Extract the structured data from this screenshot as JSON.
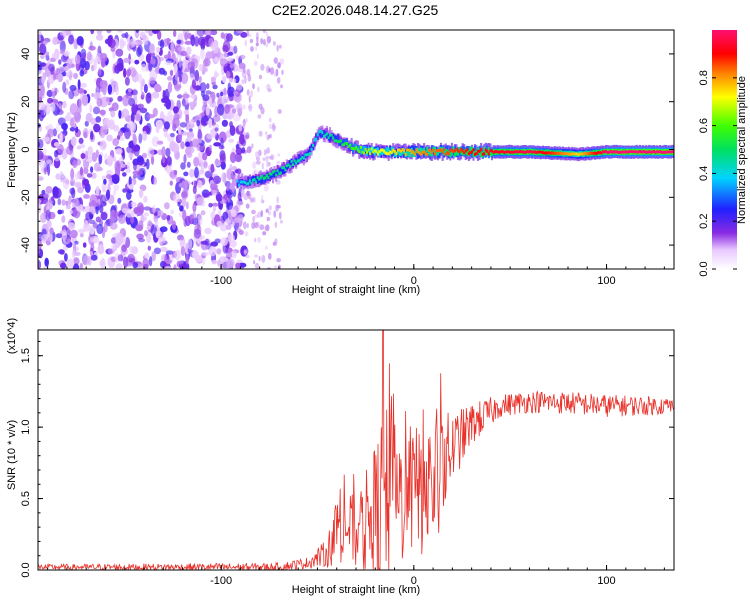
{
  "figure": {
    "title": "C2E2.2026.048.14.27.G25"
  },
  "chart_data": [
    {
      "type": "heatmap",
      "title": "C2E2.2026.048.14.27.G25",
      "xlabel": "Height of straight line (km)",
      "ylabel": "Frequency (Hz)",
      "xlim": [
        -195,
        135
      ],
      "ylim": [
        -50,
        50
      ],
      "xticks": [
        -100,
        0,
        100
      ],
      "yticks": [
        -40,
        -20,
        0,
        20,
        40
      ],
      "xtick_labels": [
        "-100",
        "0",
        "100"
      ],
      "ytick_labels": [
        "-40",
        "-20",
        "0",
        "20",
        "40"
      ],
      "colorbar": {
        "label": "Normalized spectral amplitude",
        "range": [
          0,
          1
        ],
        "ticks": [
          0.0,
          0.2,
          0.4,
          0.6,
          0.8
        ],
        "tick_labels": [
          "0.0",
          "0.2",
          "0.4",
          "0.6",
          "0.8"
        ]
      },
      "noise_region": {
        "x_start": -195,
        "x_end": -88,
        "sparse_to": -68,
        "amplitude": 0.12
      },
      "signal_track": [
        {
          "x": -92,
          "freq": -14,
          "amp": 0.32
        },
        {
          "x": -85,
          "freq": -13,
          "amp": 0.38
        },
        {
          "x": -78,
          "freq": -12,
          "amp": 0.45
        },
        {
          "x": -70,
          "freq": -9,
          "amp": 0.42
        },
        {
          "x": -62,
          "freq": -5,
          "amp": 0.4
        },
        {
          "x": -55,
          "freq": -2,
          "amp": 0.38
        },
        {
          "x": -50,
          "freq": 7,
          "amp": 0.35
        },
        {
          "x": -45,
          "freq": 6,
          "amp": 0.4
        },
        {
          "x": -40,
          "freq": 4,
          "amp": 0.45
        },
        {
          "x": -35,
          "freq": 2,
          "amp": 0.5
        },
        {
          "x": -30,
          "freq": 0,
          "amp": 0.55
        },
        {
          "x": -20,
          "freq": -1,
          "amp": 0.65
        },
        {
          "x": -10,
          "freq": -1,
          "amp": 0.7
        },
        {
          "x": 0,
          "freq": -1,
          "amp": 0.75
        },
        {
          "x": 10,
          "freq": -1,
          "amp": 0.78
        },
        {
          "x": 30,
          "freq": -1,
          "amp": 0.85
        },
        {
          "x": 60,
          "freq": -1,
          "amp": 0.92
        },
        {
          "x": 85,
          "freq": -2,
          "amp": 0.7
        },
        {
          "x": 100,
          "freq": -1,
          "amp": 0.95
        },
        {
          "x": 135,
          "freq": -1,
          "amp": 0.98
        }
      ]
    },
    {
      "type": "line",
      "xlabel": "Height of straight line (km)",
      "ylabel": "SNR (10 * v/v)",
      "y_multiplier": "(x10^4)",
      "xlim": [
        -195,
        135
      ],
      "ylim": [
        0,
        1.68
      ],
      "xticks": [
        -100,
        0,
        100
      ],
      "yticks": [
        0.0,
        0.5,
        1.0,
        1.5
      ],
      "xtick_labels": [
        "-100",
        "0",
        "100"
      ],
      "ytick_labels": [
        "0.0",
        "0.5",
        "1.0",
        "1.5"
      ],
      "series": [
        {
          "name": "SNR",
          "color": "#e8312a",
          "envelope": [
            {
              "x": -195,
              "base": 0.02,
              "spread": 0.02
            },
            {
              "x": -70,
              "base": 0.02,
              "spread": 0.03
            },
            {
              "x": -55,
              "base": 0.05,
              "spread": 0.04
            },
            {
              "x": -45,
              "base": 0.12,
              "spread": 0.1
            },
            {
              "x": -38,
              "base": 0.35,
              "spread": 0.3
            },
            {
              "x": -30,
              "base": 0.25,
              "spread": 0.25
            },
            {
              "x": -22,
              "base": 0.35,
              "spread": 0.45
            },
            {
              "x": -15,
              "base": 0.4,
              "spread": 0.75
            },
            {
              "x": -8,
              "base": 0.5,
              "spread": 0.5
            },
            {
              "x": 0,
              "base": 0.55,
              "spread": 0.45
            },
            {
              "x": 10,
              "base": 0.6,
              "spread": 0.55
            },
            {
              "x": 20,
              "base": 0.85,
              "spread": 0.25
            },
            {
              "x": 30,
              "base": 1.02,
              "spread": 0.15
            },
            {
              "x": 45,
              "base": 1.15,
              "spread": 0.08
            },
            {
              "x": 60,
              "base": 1.18,
              "spread": 0.08
            },
            {
              "x": 80,
              "base": 1.17,
              "spread": 0.08
            },
            {
              "x": 100,
              "base": 1.15,
              "spread": 0.08
            },
            {
              "x": 135,
              "base": 1.15,
              "spread": 0.06
            }
          ]
        }
      ]
    }
  ]
}
